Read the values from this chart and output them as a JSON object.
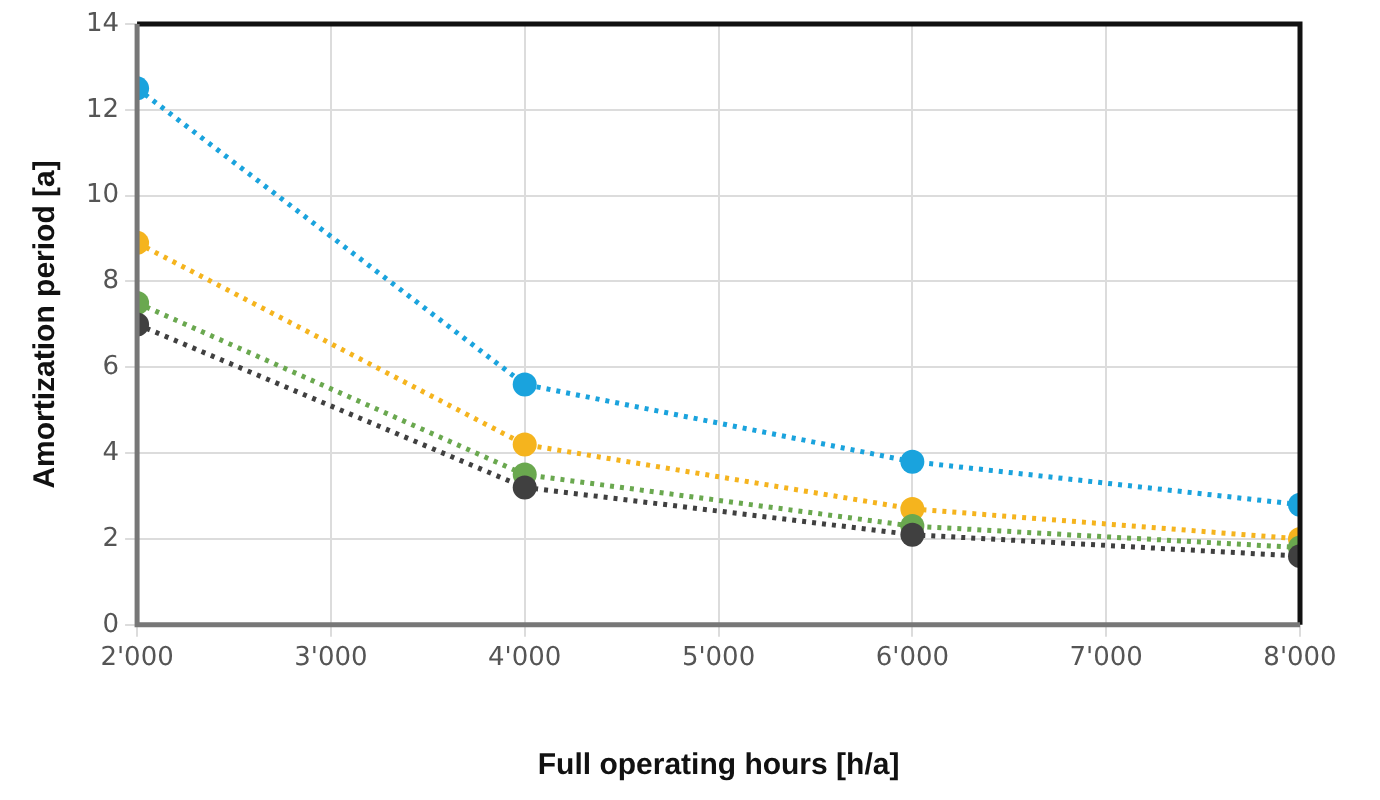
{
  "chart_data": {
    "type": "line",
    "xlabel": "Full operating hours [h/a]",
    "ylabel": "Amortization period [a]",
    "x": [
      2000,
      4000,
      6000,
      8000
    ],
    "series": [
      {
        "color": "#1aa3dd",
        "values": [
          12.5,
          5.6,
          3.8,
          2.8
        ]
      },
      {
        "color": "#f5b41e",
        "values": [
          8.9,
          4.2,
          2.7,
          2.0
        ]
      },
      {
        "color": "#6aa84f",
        "values": [
          7.5,
          3.5,
          2.3,
          1.8
        ]
      },
      {
        "color": "#404040",
        "values": [
          7.0,
          3.2,
          2.1,
          1.6
        ]
      }
    ],
    "xlim": [
      2000,
      8000
    ],
    "xticks": [
      {
        "value": 2000,
        "label": "2'000"
      },
      {
        "value": 3000,
        "label": "3'000"
      },
      {
        "value": 4000,
        "label": "4'000"
      },
      {
        "value": 5000,
        "label": "5'000"
      },
      {
        "value": 6000,
        "label": "6'000"
      },
      {
        "value": 7000,
        "label": "7'000"
      },
      {
        "value": 8000,
        "label": "8'000"
      }
    ],
    "ylim": [
      0,
      14
    ],
    "yticks": [
      0,
      2,
      4,
      6,
      8,
      10,
      12,
      14
    ],
    "grid": true,
    "legend": false,
    "marker": "circle",
    "line_style": "dotted"
  }
}
